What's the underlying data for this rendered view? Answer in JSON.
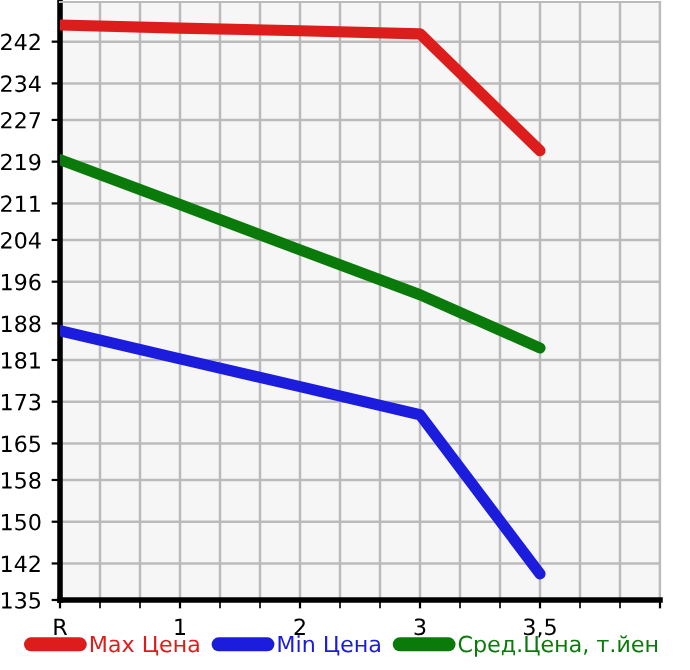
{
  "chart_data": {
    "type": "line",
    "categories": [
      "R",
      "1",
      "2",
      "3",
      "3,5",
      null
    ],
    "ylim": [
      135,
      249.6
    ],
    "yticks": [
      135,
      142,
      150,
      158,
      165,
      173,
      181,
      188,
      196,
      204,
      211,
      219,
      227,
      234,
      242
    ],
    "grid": true,
    "legend": "bottom",
    "marker": "none",
    "line_style": "solid",
    "series": [
      {
        "name": "Max Цена",
        "color": "#dd1c1c",
        "values": [
          245.2,
          244.6,
          244.1,
          243.5,
          221.1,
          null
        ]
      },
      {
        "name": "Min Цена",
        "color": "#1c1cdd",
        "values": [
          186.6,
          181.2,
          175.9,
          170.5,
          140.0,
          null
        ]
      },
      {
        "name": "Сред.Цена, т.йен",
        "color": "#0a7a0a",
        "values": [
          219.4,
          210.8,
          202.1,
          193.5,
          183.3,
          null
        ]
      }
    ]
  }
}
